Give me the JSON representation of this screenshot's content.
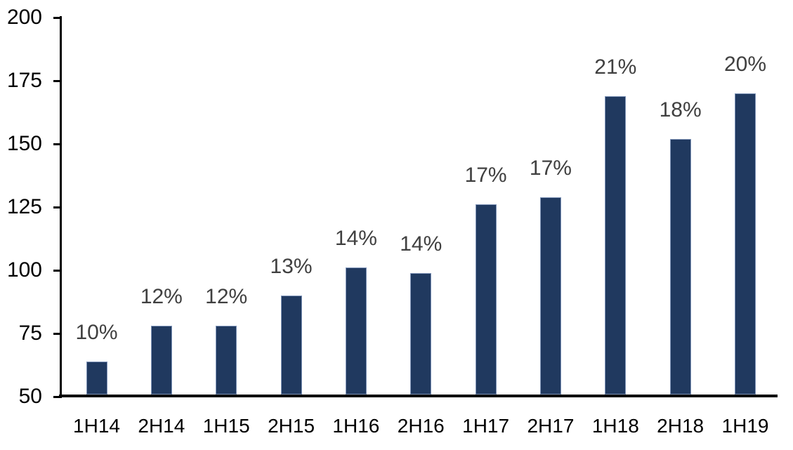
{
  "chart_data": {
    "type": "bar",
    "title": "",
    "xlabel": "",
    "ylabel": "",
    "categories": [
      "1H14",
      "2H14",
      "1H15",
      "2H15",
      "1H16",
      "2H16",
      "1H17",
      "2H17",
      "1H18",
      "2H18",
      "1H19"
    ],
    "values": [
      64,
      78,
      78,
      90,
      101,
      99,
      126,
      129,
      169,
      152,
      170
    ],
    "bar_labels": [
      "10%",
      "12%",
      "12%",
      "13%",
      "14%",
      "14%",
      "17%",
      "17%",
      "21%",
      "18%",
      "20%"
    ],
    "ylim": [
      50,
      200
    ],
    "yticks": [
      200,
      175,
      150,
      125,
      100,
      75,
      50
    ],
    "grid": false,
    "legend": false,
    "colors": {
      "bar_fill": "#20395f",
      "bar_edge": "#7f94b8",
      "value_label": "#404040",
      "axis": "#000000",
      "tick_label": "#000000",
      "background": "#ffffff"
    }
  }
}
